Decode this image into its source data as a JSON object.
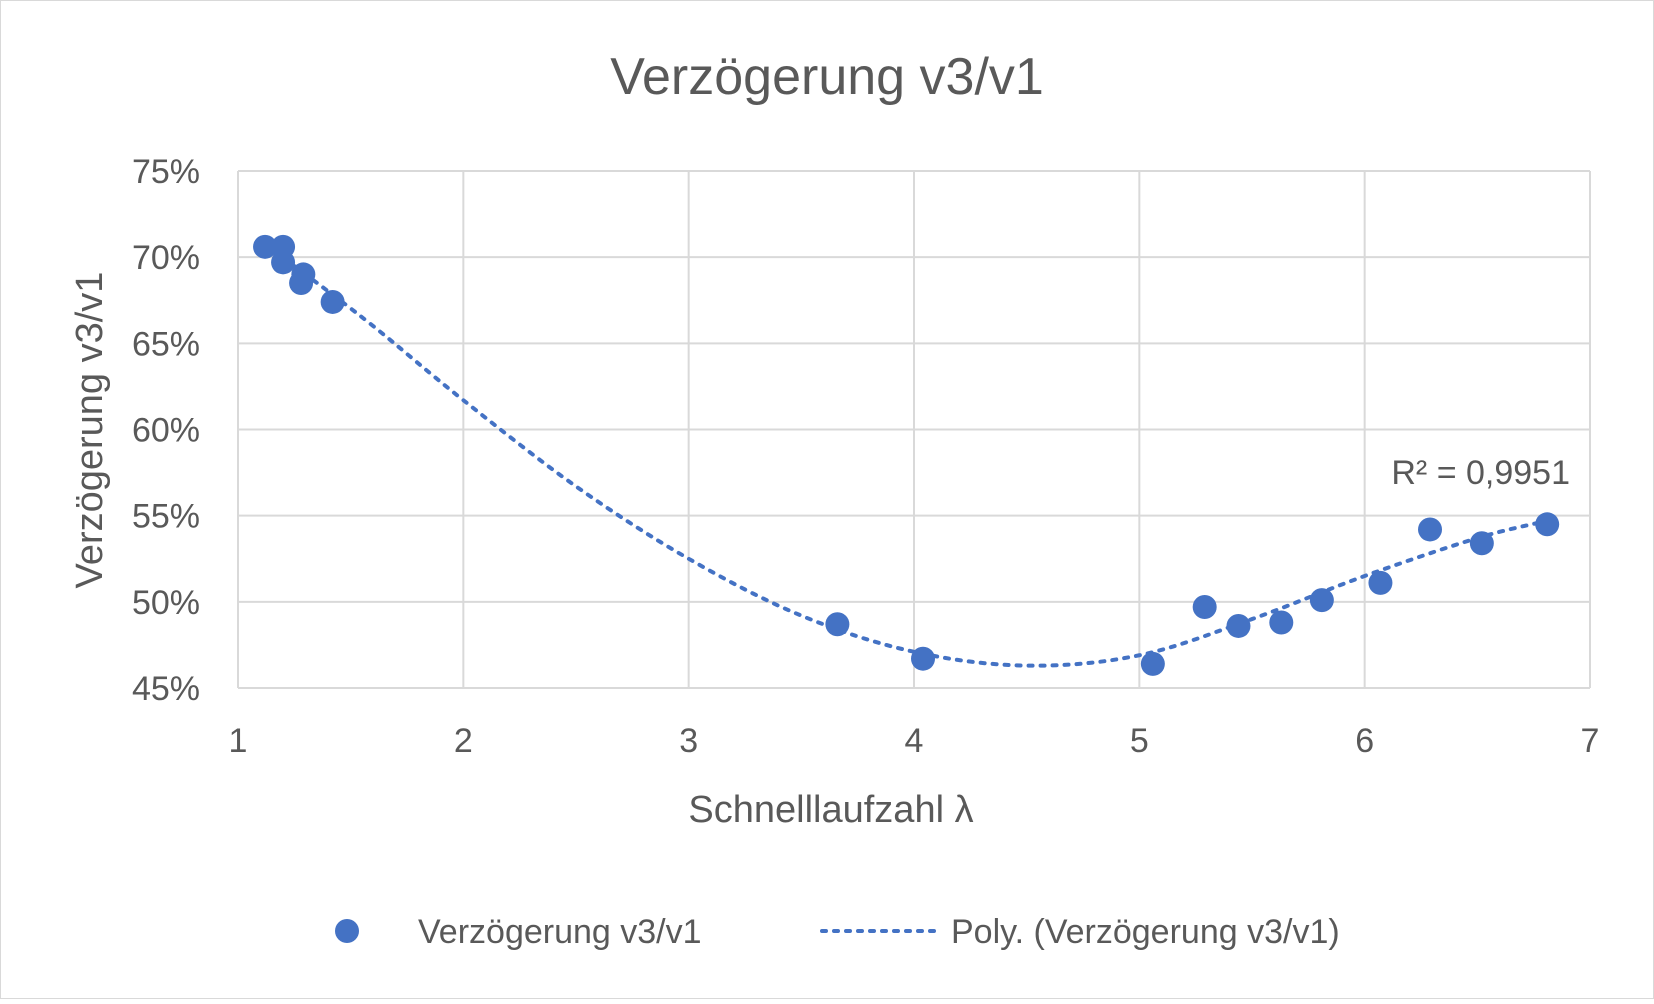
{
  "chart_data": {
    "type": "scatter",
    "title": "Verzögerung v3/v1",
    "xlabel": "Schnelllaufzahl λ",
    "ylabel": "Verzögerung v3/v1",
    "xlim": [
      1,
      7
    ],
    "ylim": [
      0.45,
      0.75
    ],
    "x_ticks": [
      1,
      2,
      3,
      4,
      5,
      6,
      7
    ],
    "y_ticks": [
      0.45,
      0.5,
      0.55,
      0.6,
      0.65,
      0.7,
      0.75
    ],
    "x_tick_labels": [
      "1",
      "2",
      "3",
      "4",
      "5",
      "6",
      "7"
    ],
    "y_tick_labels": [
      "45%",
      "50%",
      "55%",
      "60%",
      "65%",
      "70%",
      "75%"
    ],
    "grid": true,
    "legend_position": "bottom",
    "series": [
      {
        "name": "Verzögerung v3/v1",
        "color": "#4472C4",
        "points": [
          [
            1.12,
            0.706
          ],
          [
            1.2,
            0.706
          ],
          [
            1.2,
            0.697
          ],
          [
            1.28,
            0.685
          ],
          [
            1.29,
            0.69
          ],
          [
            1.42,
            0.674
          ],
          [
            3.66,
            0.487
          ],
          [
            4.04,
            0.467
          ],
          [
            5.06,
            0.464
          ],
          [
            5.29,
            0.497
          ],
          [
            5.44,
            0.486
          ],
          [
            5.63,
            0.488
          ],
          [
            5.81,
            0.501
          ],
          [
            6.07,
            0.511
          ],
          [
            6.29,
            0.542
          ],
          [
            6.52,
            0.534
          ],
          [
            6.81,
            0.545
          ]
        ]
      }
    ],
    "trendline": {
      "name": "Poly. (Verzögerung v3/v1)",
      "type": "polynomial",
      "color": "#4472C4",
      "style": "dotted",
      "r_squared_label": "R² = 0,9951",
      "points": [
        [
          1.12,
          0.707
        ],
        [
          1.3,
          0.69
        ],
        [
          1.6,
          0.66
        ],
        [
          2.0,
          0.617
        ],
        [
          2.5,
          0.567
        ],
        [
          3.0,
          0.525
        ],
        [
          3.5,
          0.492
        ],
        [
          4.0,
          0.471
        ],
        [
          4.5,
          0.463
        ],
        [
          5.0,
          0.469
        ],
        [
          5.5,
          0.49
        ],
        [
          6.0,
          0.515
        ],
        [
          6.5,
          0.537
        ],
        [
          6.81,
          0.547
        ]
      ]
    }
  }
}
